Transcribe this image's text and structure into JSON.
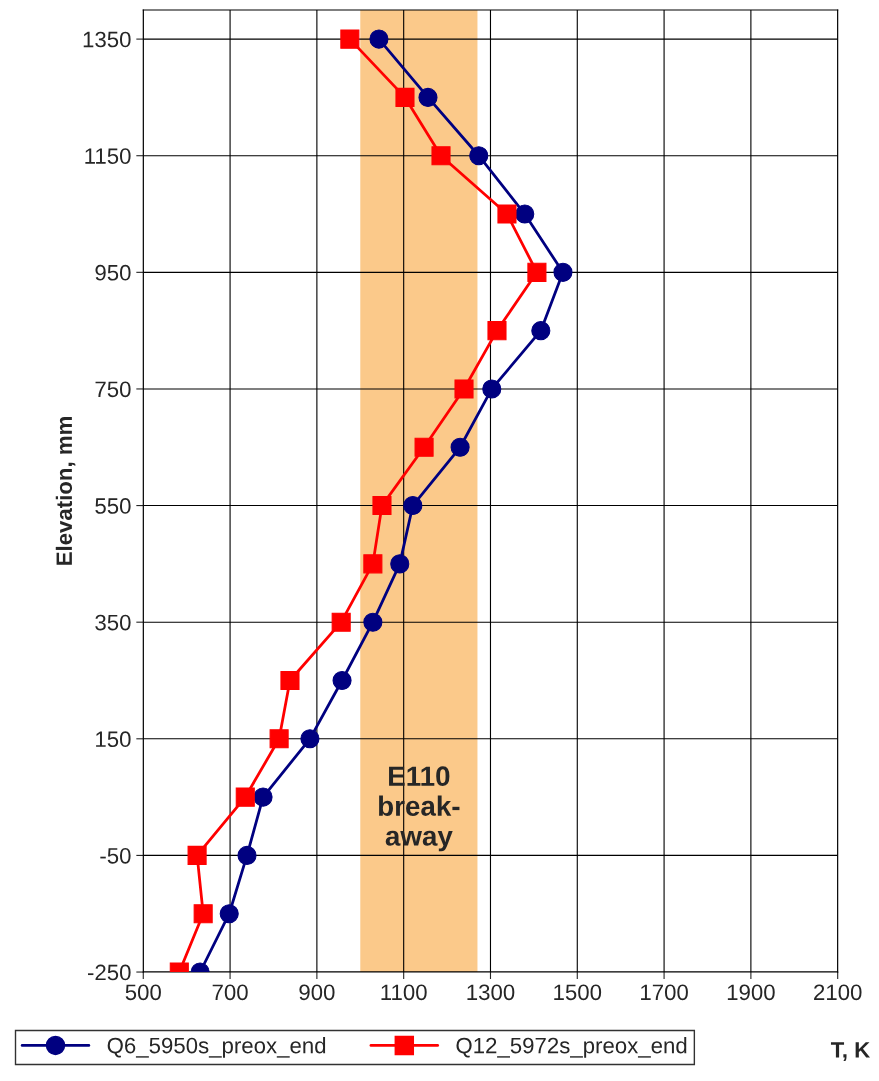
{
  "chart_data": {
    "type": "line",
    "xlabel": "T, K",
    "ylabel": "Elevation, mm",
    "series": [
      {
        "name": "Q6_5950s_preox_end",
        "color": "#000080",
        "marker": "circle",
        "x": [
          1043,
          1156,
          1273,
          1379,
          1467,
          1416,
          1303,
          1230,
          1121,
          1091,
          1029,
          958,
          884,
          776,
          739,
          698,
          631
        ],
        "values": [
          1350,
          1250,
          1150,
          1050,
          950,
          850,
          750,
          650,
          550,
          450,
          350,
          250,
          150,
          50,
          -50,
          -150,
          -250
        ]
      },
      {
        "name": "Q12_5972s_preox_end",
        "color": "#ff0000",
        "marker": "square",
        "x": [
          976,
          1103,
          1186,
          1338,
          1407,
          1315,
          1239,
          1147,
          1050,
          1029,
          956,
          838,
          813,
          735,
          624,
          638,
          583
        ],
        "values": [
          1350,
          1250,
          1150,
          1050,
          950,
          850,
          750,
          650,
          550,
          450,
          350,
          250,
          150,
          50,
          -50,
          -150,
          -250
        ]
      }
    ],
    "bands": [
      {
        "axis": "x",
        "from": 1000,
        "to": 1270,
        "label": "E110\nbreak-\naway",
        "color": "#fbc98a"
      }
    ],
    "xlim": [
      500,
      2100
    ],
    "xticks": [
      500,
      700,
      900,
      1100,
      1300,
      1500,
      1700,
      1900,
      2100
    ],
    "ylim": [
      -250,
      1400
    ],
    "yticks": [
      -250,
      -50,
      150,
      350,
      550,
      750,
      950,
      1150,
      1350
    ],
    "grid": true,
    "legend": "bottom",
    "line_style": "solid"
  }
}
